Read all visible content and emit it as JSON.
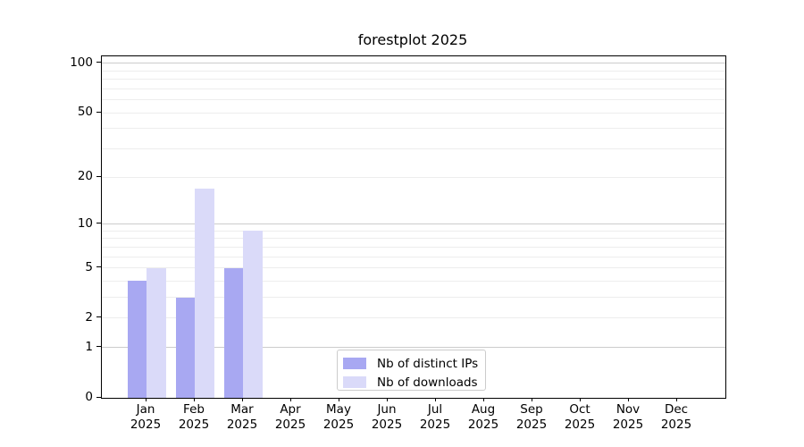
{
  "chart_data": {
    "type": "bar",
    "title": "forestplot 2025",
    "x_year": "2025",
    "categories": [
      "Jan",
      "Feb",
      "Mar",
      "Apr",
      "May",
      "Jun",
      "Jul",
      "Aug",
      "Sep",
      "Oct",
      "Nov",
      "Dec"
    ],
    "series": [
      {
        "name": "Nb of distinct IPs",
        "color": "#a8a8f2",
        "values": [
          4,
          3,
          5,
          0,
          0,
          0,
          0,
          0,
          0,
          0,
          0,
          0
        ]
      },
      {
        "name": "Nb of downloads",
        "color": "#dadaf9",
        "values": [
          5,
          17,
          9,
          0,
          0,
          0,
          0,
          0,
          0,
          0,
          0,
          0
        ]
      }
    ],
    "y_axis": {
      "scale": "log1p",
      "ylim": [
        0,
        110
      ],
      "ticks": [
        0,
        1,
        2,
        5,
        10,
        20,
        50,
        100
      ],
      "major_gridlines": [
        1,
        10,
        100
      ],
      "minor_gridlines": [
        2,
        3,
        4,
        5,
        6,
        7,
        8,
        9,
        20,
        30,
        40,
        50,
        60,
        70,
        80,
        90
      ]
    },
    "legend": {
      "position": "lower center",
      "entries": [
        "Nb of distinct IPs",
        "Nb of downloads"
      ]
    },
    "colors": {
      "major_grid": "#cccccc",
      "minor_grid": "#ededed",
      "spine": "#000000",
      "background": "#ffffff"
    }
  }
}
